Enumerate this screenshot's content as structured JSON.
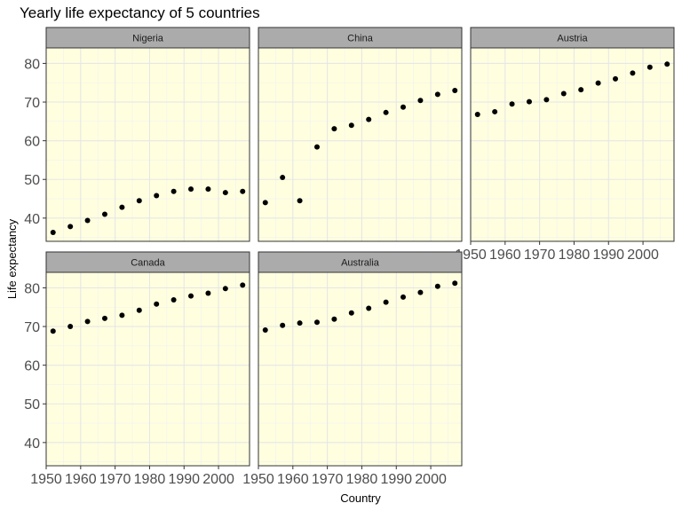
{
  "chart_data": {
    "type": "scatter",
    "title": "Yearly life expectancy of 5 countries",
    "xlabel": "Country",
    "ylabel": "Life expectancy",
    "xlim": [
      1950,
      2009
    ],
    "ylim": [
      34,
      84
    ],
    "x_ticks": [
      1950,
      1960,
      1970,
      1980,
      1990,
      2000
    ],
    "x_tick_labels": [
      "1950",
      "1960",
      "1970",
      "1980",
      "1990",
      "2000"
    ],
    "y_ticks": [
      40,
      50,
      60,
      70,
      80
    ],
    "y_tick_labels": [
      "40",
      "50",
      "60",
      "70",
      "80"
    ],
    "grid": true,
    "panel_background": "#ffffe0",
    "strip_color": "#ababab",
    "point_color": "#000000",
    "x": [
      1952,
      1957,
      1962,
      1967,
      1972,
      1977,
      1982,
      1987,
      1992,
      1997,
      2002,
      2007
    ],
    "series": [
      {
        "name": "Nigeria",
        "values": [
          36.3,
          37.8,
          39.4,
          41.0,
          42.8,
          44.5,
          45.8,
          46.9,
          47.5,
          47.5,
          46.6,
          46.9
        ]
      },
      {
        "name": "China",
        "values": [
          44.0,
          50.5,
          44.5,
          58.4,
          63.1,
          64.0,
          65.5,
          67.3,
          68.7,
          70.4,
          72.0,
          73.0
        ]
      },
      {
        "name": "Austria",
        "values": [
          66.8,
          67.5,
          69.5,
          70.1,
          70.6,
          72.2,
          73.2,
          74.9,
          76.0,
          77.5,
          79.0,
          79.8
        ]
      },
      {
        "name": "Canada",
        "values": [
          68.8,
          70.0,
          71.3,
          72.1,
          72.9,
          74.2,
          75.8,
          76.9,
          77.9,
          78.6,
          79.8,
          80.7
        ]
      },
      {
        "name": "Australia",
        "values": [
          69.1,
          70.3,
          70.9,
          71.1,
          71.9,
          73.5,
          74.7,
          76.3,
          77.6,
          78.8,
          80.4,
          81.2
        ]
      }
    ]
  }
}
